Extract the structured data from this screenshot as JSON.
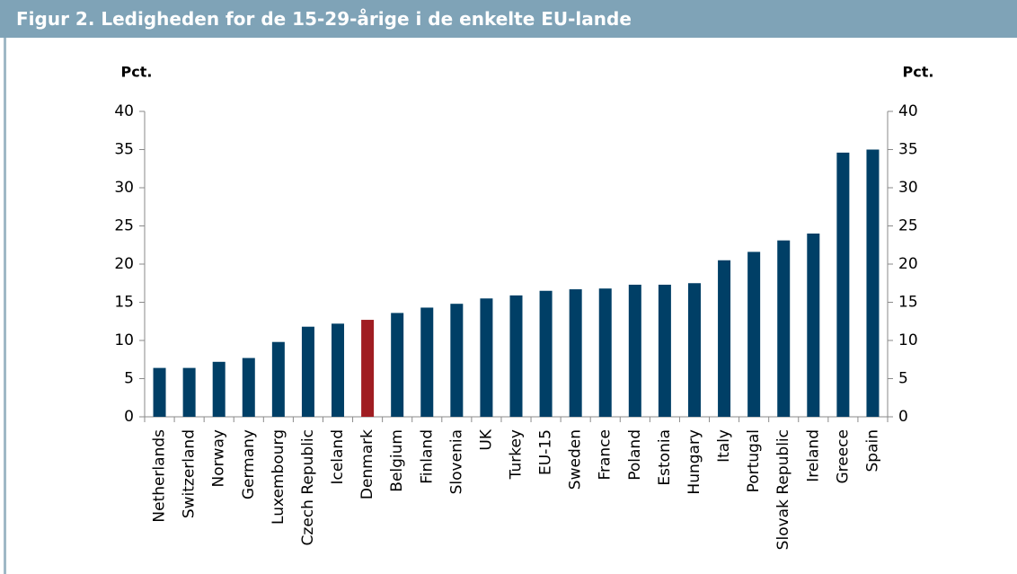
{
  "chart_data": {
    "type": "bar",
    "title": "Figur 2. Ledigheden for de 15-29-årige i de enkelte EU-lande",
    "y_label": "Pct.",
    "y2_label": "Pct.",
    "categories": [
      "Netherlands",
      "Switzerland",
      "Norway",
      "Germany",
      "Luxembourg",
      "Czech Republic",
      "Iceland",
      "Denmark",
      "Belgium",
      "Finland",
      "Slovenia",
      "UK",
      "Turkey",
      "EU-15",
      "Sweden",
      "France",
      "Poland",
      "Estonia",
      "Hungary",
      "Italy",
      "Portugal",
      "Slovak Republic",
      "Ireland",
      "Greece",
      "Spain"
    ],
    "values": [
      6.4,
      6.4,
      7.2,
      7.7,
      9.8,
      11.8,
      12.2,
      12.7,
      13.6,
      14.3,
      14.8,
      15.5,
      15.9,
      16.5,
      16.7,
      16.8,
      17.3,
      17.3,
      17.5,
      20.5,
      21.6,
      23.1,
      24.0,
      34.6,
      35.0
    ],
    "colors": [
      "#003f66",
      "#003f66",
      "#003f66",
      "#003f66",
      "#003f66",
      "#003f66",
      "#003f66",
      "#a01d22",
      "#003f66",
      "#003f66",
      "#003f66",
      "#003f66",
      "#003f66",
      "#003f66",
      "#003f66",
      "#003f66",
      "#003f66",
      "#003f66",
      "#003f66",
      "#003f66",
      "#003f66",
      "#003f66",
      "#003f66",
      "#003f66",
      "#003f66"
    ],
    "ylim": [
      0,
      40
    ],
    "yticks": [
      0,
      5,
      10,
      15,
      20,
      25,
      30,
      35,
      40
    ],
    "y2lim": [
      0,
      40
    ],
    "y2ticks": [
      0,
      5,
      10,
      15,
      20,
      25,
      30,
      35,
      40
    ],
    "grid": false
  }
}
